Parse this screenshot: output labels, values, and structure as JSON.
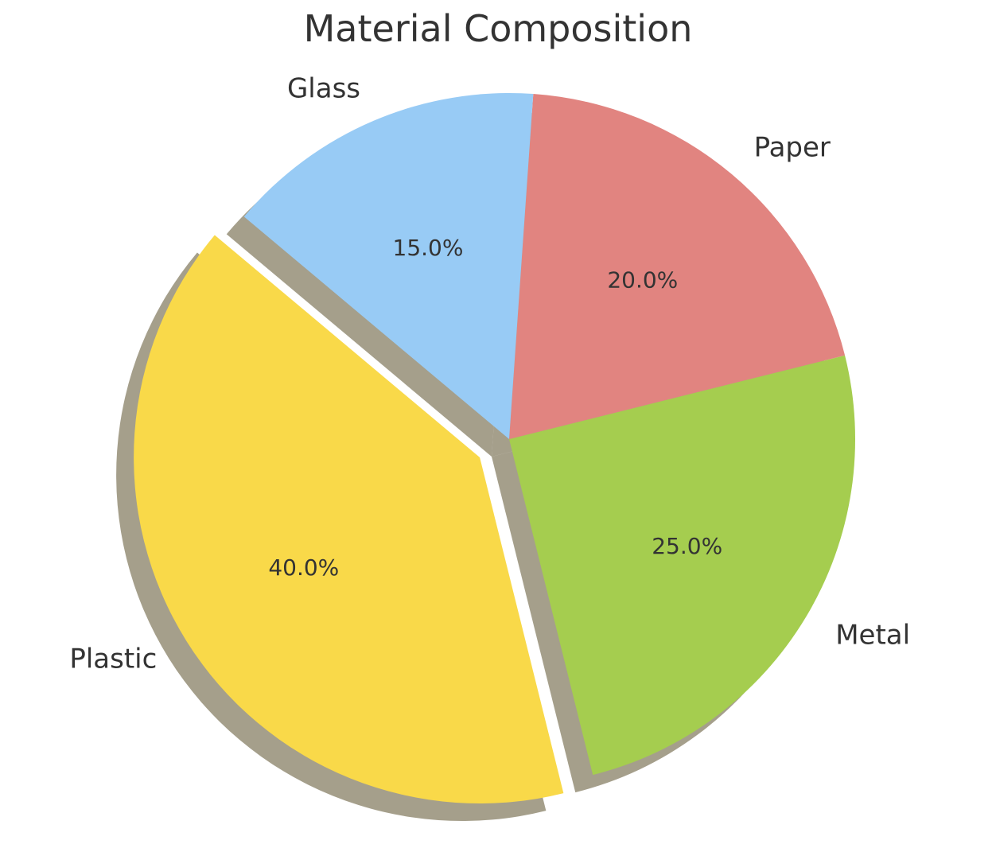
{
  "chart_data": {
    "type": "pie",
    "title": "Material Composition",
    "categories": [
      "Plastic",
      "Metal",
      "Paper",
      "Glass"
    ],
    "values": [
      40.0,
      25.0,
      20.0,
      15.0
    ],
    "percent_labels": [
      "40.0%",
      "25.0%",
      "20.0%",
      "15.0%"
    ],
    "colors": [
      "#F9D949",
      "#A5CD4F",
      "#E18480",
      "#98CBF5"
    ],
    "shadow_color": "#6E6443",
    "exploded": [
      true,
      false,
      false,
      false
    ],
    "shadow": true
  }
}
